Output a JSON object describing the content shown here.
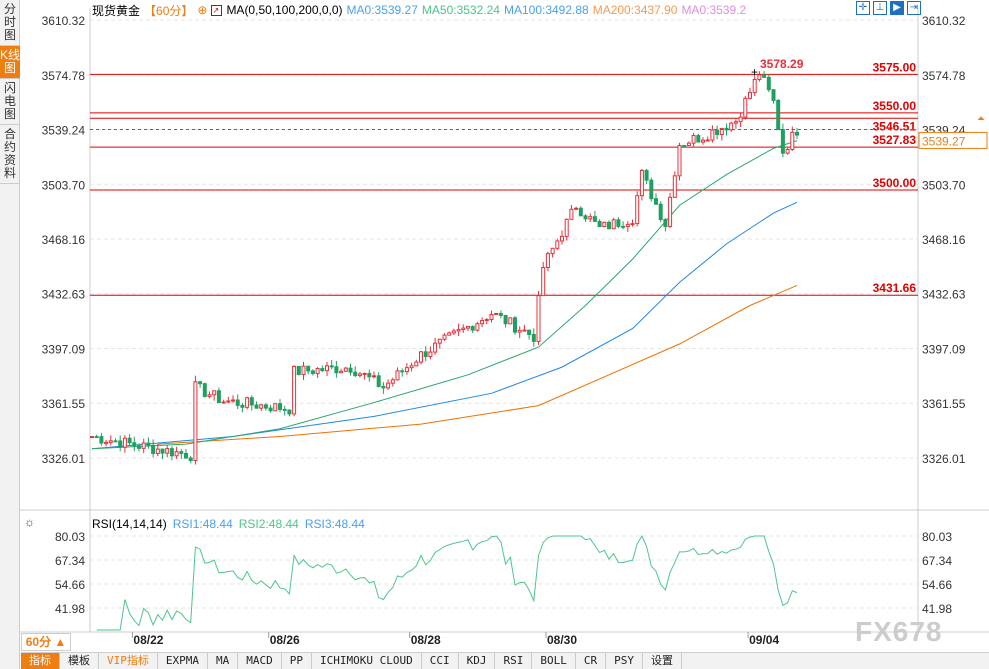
{
  "side_tabs": [
    "分时图",
    "K线图",
    "闪电图",
    "合约资料"
  ],
  "header": {
    "symbol": "现货黄金",
    "period": "【60分】",
    "ma_label": "MA(0,50,100,200,0,0)",
    "ma0": "MA0:3539.27",
    "ma50": "MA50:3532.24",
    "ma100": "MA100:3492.88",
    "ma200": "MA200:3437.90",
    "ma0b": "MA0:3539.2"
  },
  "colors": {
    "up": "#e8303a",
    "down": "#20a060",
    "ma50": "#2aa86a",
    "ma100": "#1e88e5",
    "ma200": "#f07000",
    "hline": "#e00000",
    "accent": "#f07d10"
  },
  "price_axis": [
    "3610.32",
    "3574.78",
    "3539.24",
    "3503.70",
    "3468.16",
    "3432.63",
    "3397.09",
    "3361.55",
    "3326.01"
  ],
  "price_range": [
    3326.01,
    3610.32
  ],
  "hlines": [
    {
      "label": "3575.00",
      "v": 3575
    },
    {
      "label": "3550.00",
      "v": 3550
    },
    {
      "label": "3546.51",
      "v": 3546.51
    },
    {
      "label": "3527.83",
      "v": 3527.83
    },
    {
      "label": "3500.00",
      "v": 3500
    },
    {
      "label": "3431.66",
      "v": 3431.66
    }
  ],
  "high_label": "3578.29",
  "current_price": "3539.27",
  "price_keypoints": [
    [
      0,
      3340
    ],
    [
      10,
      3334
    ],
    [
      21,
      3328
    ],
    [
      22,
      3372
    ],
    [
      28,
      3363
    ],
    [
      42,
      3358
    ],
    [
      43,
      3382
    ],
    [
      55,
      3385
    ],
    [
      62,
      3372
    ],
    [
      70,
      3393
    ],
    [
      85,
      3420
    ],
    [
      94,
      3405
    ],
    [
      96,
      3450
    ],
    [
      103,
      3490
    ],
    [
      108,
      3475
    ],
    [
      115,
      3482
    ],
    [
      117,
      3510
    ],
    [
      122,
      3478
    ],
    [
      125,
      3530
    ],
    [
      130,
      3535
    ],
    [
      137,
      3545
    ],
    [
      142,
      3576
    ],
    [
      145,
      3557
    ],
    [
      147,
      3525
    ],
    [
      150,
      3539
    ]
  ],
  "ma_keypoints": {
    "ma50": [
      [
        0,
        3332
      ],
      [
        20,
        3335
      ],
      [
        40,
        3345
      ],
      [
        60,
        3362
      ],
      [
        80,
        3380
      ],
      [
        95,
        3398
      ],
      [
        105,
        3425
      ],
      [
        115,
        3455
      ],
      [
        125,
        3490
      ],
      [
        135,
        3510
      ],
      [
        145,
        3527
      ],
      [
        150,
        3532
      ]
    ],
    "ma100": [
      [
        0,
        3332
      ],
      [
        30,
        3340
      ],
      [
        60,
        3353
      ],
      [
        85,
        3368
      ],
      [
        100,
        3385
      ],
      [
        115,
        3410
      ],
      [
        125,
        3440
      ],
      [
        135,
        3465
      ],
      [
        145,
        3485
      ],
      [
        150,
        3492
      ]
    ],
    "ma200": [
      [
        14,
        3335
      ],
      [
        40,
        3340
      ],
      [
        70,
        3348
      ],
      [
        95,
        3360
      ],
      [
        110,
        3380
      ],
      [
        125,
        3400
      ],
      [
        140,
        3425
      ],
      [
        150,
        3438
      ]
    ]
  },
  "rsi": {
    "label": "RSI(14,14,14)",
    "rsi1": "RSI1:48.44",
    "rsi2": "RSI2:48.44",
    "rsi3": "RSI3:48.44",
    "axis": [
      "80.03",
      "67.34",
      "54.66",
      "41.98"
    ],
    "range": [
      41.98,
      80.03
    ]
  },
  "dates": [
    {
      "label": "08/22",
      "i": 12
    },
    {
      "label": "08/26",
      "i": 41
    },
    {
      "label": "08/28",
      "i": 71
    },
    {
      "label": "08/30",
      "i": 100
    },
    {
      "label": "09/04",
      "i": 143
    }
  ],
  "period_button": "60分 ▲",
  "bottom_tabs": [
    "指标",
    "模板",
    "VIP指标",
    "EXPMA",
    "MA",
    "MACD",
    "PP",
    "ICHIMOKU CLOUD",
    "CCI",
    "KDJ",
    "RSI",
    "BOLL",
    "CR",
    "PSY",
    "设置"
  ],
  "watermark": "FX678"
}
